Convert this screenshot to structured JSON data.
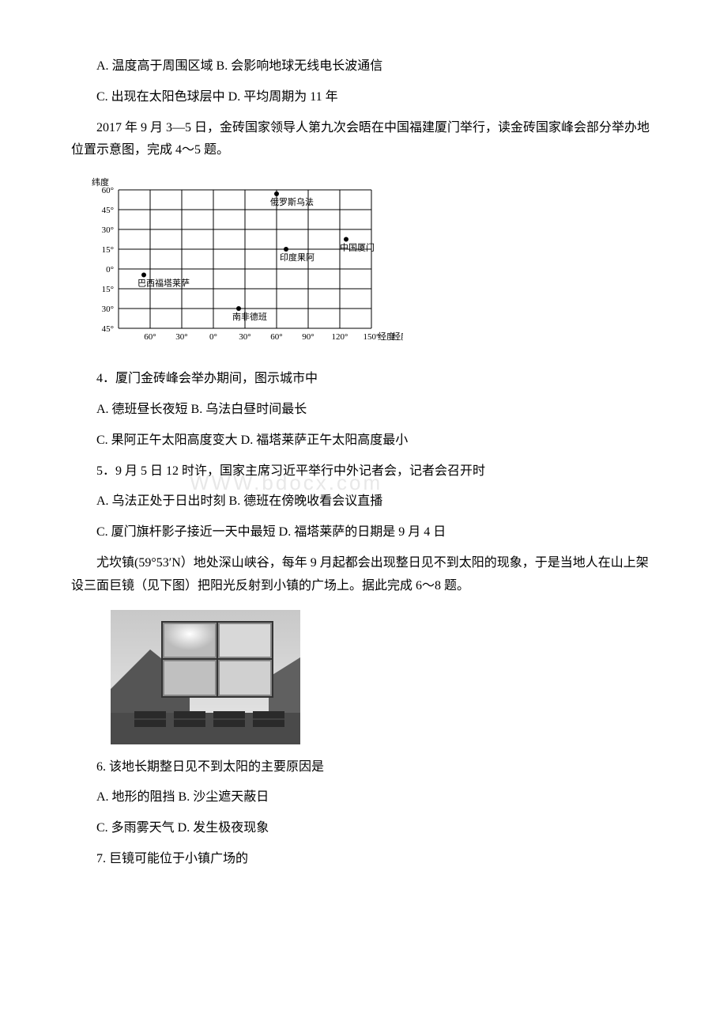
{
  "q_options_1": "A. 温度高于周围区域 B. 会影响地球无线电长波通信",
  "q_options_2": "C. 出现在太阳色球层中 D. 平均周期为 11 年",
  "intro_45": "2017 年 9 月 3—5 日，金砖国家领导人第九次会晤在中国福建厦门举行，读金砖国家峰会部分举办地位置示意图，完成 4～5 题。",
  "chart": {
    "y_label": "纬度",
    "x_label": "经度",
    "y_ticks": [
      "60°",
      "45°",
      "30°",
      "15°",
      "0°",
      "15°",
      "30°",
      "45°"
    ],
    "x_ticks": [
      "60°",
      "30°",
      "0°",
      "30°",
      "60°",
      "90°",
      "120°",
      "150°"
    ],
    "points": [
      {
        "label": "俄罗斯乌法",
        "x_idx": 5.0,
        "y_idx": 0.2
      },
      {
        "label": "中国厦门",
        "x_idx": 7.2,
        "y_idx": 2.5
      },
      {
        "label": "印度果阿",
        "x_idx": 5.3,
        "y_idx": 3.0
      },
      {
        "label": "巴西福塔莱萨",
        "x_idx": 0.8,
        "y_idx": 4.3
      },
      {
        "label": "南非德班",
        "x_idx": 3.8,
        "y_idx": 6.0
      }
    ],
    "grid_rows": 7,
    "grid_cols": 8,
    "line_color": "#000000",
    "bg_color": "#ffffff",
    "font_size": 11
  },
  "q4_stem": "4．厦门金砖峰会举办期间，图示城市中",
  "q4_ab": "A. 德班昼长夜短    B. 乌法白昼时间最长",
  "q4_cd": "C. 果阿正午太阳高度变大    D. 福塔莱萨正午太阳高度最小",
  "q5_stem": "5．9 月 5 日 12 时许，国家主席习近平举行中外记者会，记者会召开时",
  "q5_ab": "A. 乌法正处于日出时刻 B. 德班在傍晚收看会议直播",
  "q5_cd": "C. 厦门旗杆影子接近一天中最短    D. 福塔莱萨的日期是 9 月 4 日",
  "intro_68": "尤坎镇(59°53′N）地处深山峡谷，每年 9 月起都会出现整日见不到太阳的现象，于是当地人在山上架设三面巨镜（见下图）把阳光反射到小镇的广场上。据此完成 6～8 题。",
  "q6_stem": "6. 该地长期整日见不到太阳的主要原因是",
  "q6_ab": "A. 地形的阻挡 B. 沙尘遮天蔽日",
  "q6_cd": "C. 多雨雾天气 D. 发生极夜现象",
  "q7_stem": "7. 巨镜可能位于小镇广场的",
  "watermark_text": "WWW.bdocx.com"
}
